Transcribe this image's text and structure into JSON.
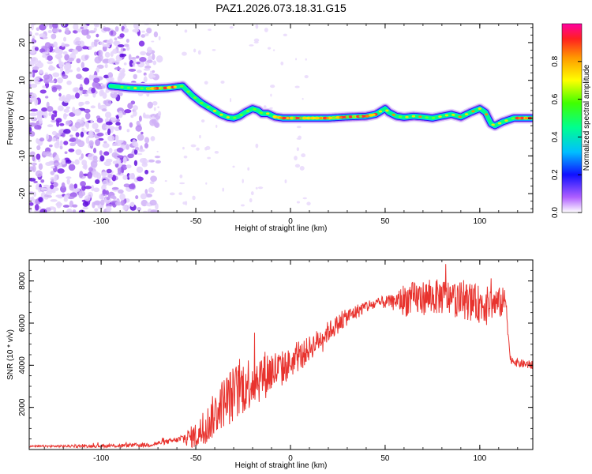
{
  "title": "PAZ1.2026.073.18.31.G15",
  "chart_data": [
    {
      "type": "heatmap",
      "xlabel": "Height of straight line (km)",
      "ylabel": "Frequency (Hz)",
      "xlim": [
        -138,
        128
      ],
      "ylim": [
        -25,
        25
      ],
      "xticks": [
        -100,
        -50,
        0,
        50,
        100
      ],
      "yticks": [
        -20,
        -10,
        0,
        10,
        20
      ],
      "colorbar": {
        "label": "Normalized spectral amplitude",
        "range": [
          0,
          1
        ],
        "ticks": [
          0.0,
          0.2,
          0.4,
          0.6,
          0.8
        ]
      },
      "ridge": {
        "x": [
          -95,
          -85,
          -75,
          -65,
          -57,
          -52,
          -47,
          -42,
          -37,
          -33,
          -30,
          -27,
          -24,
          -20,
          -17,
          -15,
          -12,
          -8,
          -4,
          0,
          10,
          20,
          30,
          40,
          45,
          50,
          52,
          56,
          60,
          65,
          70,
          75,
          80,
          85,
          90,
          95,
          100,
          103,
          106,
          108,
          112,
          118,
          128
        ],
        "y": [
          8.5,
          8,
          7.8,
          8,
          8.5,
          6,
          4,
          2.5,
          1,
          0.2,
          0,
          0.5,
          1.5,
          2.5,
          2,
          1.2,
          1.2,
          0.3,
          0,
          0,
          0,
          0,
          0.3,
          0.5,
          1,
          2.5,
          1.5,
          0.5,
          0.2,
          0.5,
          0.3,
          0,
          0.5,
          1,
          0.3,
          1.5,
          2.5,
          1.5,
          -1.5,
          -2,
          -1,
          0,
          0
        ],
        "peak_ranges": [
          [
            -75,
            -60
          ],
          [
            -8,
            45
          ],
          [
            120,
            128
          ]
        ]
      },
      "noise_region": [
        -138,
        -75
      ]
    },
    {
      "type": "line",
      "xlabel": "Height of straight line (km)",
      "ylabel": "SNR (10 * v/v)",
      "xlim": [
        -138,
        128
      ],
      "ylim": [
        0,
        9000
      ],
      "xticks": [
        -100,
        -50,
        0,
        50,
        100
      ],
      "yticks": [
        2000,
        4000,
        6000,
        8000
      ],
      "series": [
        {
          "name": "SNR",
          "color": "#e8332e",
          "envelope_x": [
            -138,
            -110,
            -90,
            -75,
            -60,
            -50,
            -45,
            -40,
            -35,
            -30,
            -25,
            -20,
            -15,
            -10,
            -5,
            0,
            5,
            10,
            20,
            30,
            40,
            50,
            60,
            70,
            80,
            90,
            100,
            110,
            114,
            116,
            120,
            128
          ],
          "envelope_y": [
            150,
            160,
            180,
            220,
            450,
            650,
            1000,
            1700,
            2300,
            2600,
            3000,
            3300,
            3500,
            3700,
            3800,
            4100,
            4400,
            4800,
            5600,
            6300,
            6800,
            7000,
            7100,
            7200,
            7250,
            7100,
            6900,
            6950,
            7000,
            4300,
            4100,
            4000
          ],
          "noise_amplitude_x": [
            -138,
            -60,
            -45,
            -30,
            -20,
            -10,
            0,
            20,
            40,
            55,
            60,
            100,
            114,
            116,
            128
          ],
          "noise_amplitude_y": [
            40,
            120,
            900,
            1400,
            1300,
            1100,
            700,
            500,
            300,
            300,
            800,
            900,
            700,
            200,
            200
          ],
          "peak": {
            "x": 82,
            "y": 8800
          }
        }
      ]
    }
  ]
}
